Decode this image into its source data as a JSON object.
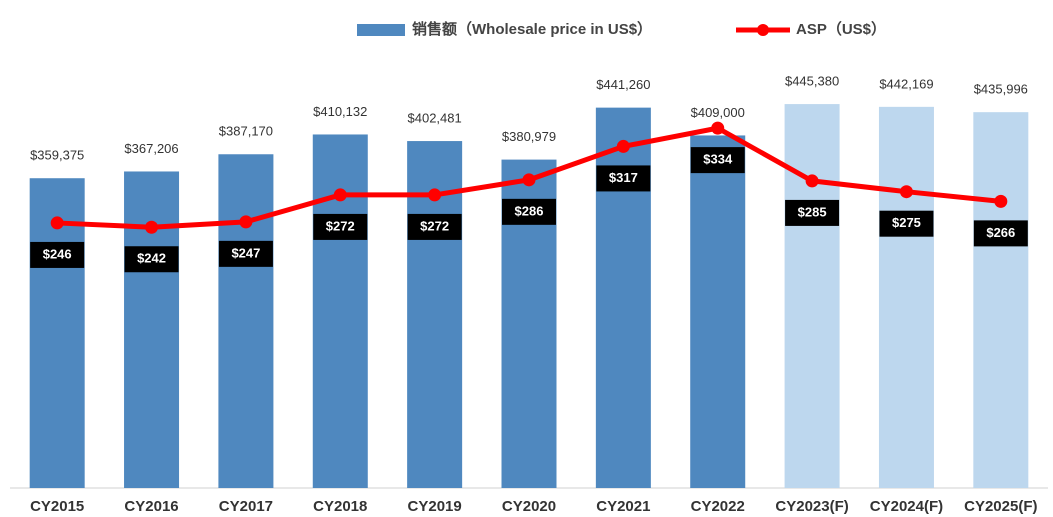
{
  "chart_data": {
    "type": "bar-line",
    "categories": [
      "CY2015",
      "CY2016",
      "CY2017",
      "CY2018",
      "CY2019",
      "CY2020",
      "CY2021",
      "CY2022",
      "CY2023(F)",
      "CY2024(F)",
      "CY2025(F)"
    ],
    "series": [
      {
        "name": "销售额（Wholesale price in US$）",
        "type": "bar",
        "color": "#4f88bf",
        "colors": [
          "#4f88bf",
          "#4f88bf",
          "#4f88bf",
          "#4f88bf",
          "#4f88bf",
          "#4f88bf",
          "#4f88bf",
          "#4f88bf",
          "#bdd7ee",
          "#bdd7ee",
          "#bdd7ee"
        ],
        "values": [
          359375,
          367206,
          387170,
          410132,
          402481,
          380979,
          441260,
          409000,
          445380,
          442169,
          435996
        ],
        "value_labels": [
          "$359,375",
          "$367,206",
          "$387,170",
          "$410,132",
          "$402,481",
          "$380,979",
          "$441,260",
          "$409,000",
          "$445,380",
          "$442,169",
          "$435,996"
        ]
      },
      {
        "name": "ASP（US$）",
        "type": "line",
        "color": "#ff0000",
        "axis": "y2",
        "values": [
          246,
          242,
          247,
          272,
          272,
          286,
          317,
          334,
          285,
          275,
          266
        ],
        "value_labels": [
          "$246",
          "$242",
          "$247",
          "$272",
          "$272",
          "$286",
          "$317",
          "$334",
          "$285",
          "$275",
          "$266"
        ]
      }
    ],
    "ylim": [
      0,
      500000
    ],
    "y2lim": [
      0,
      400
    ],
    "legend": "top"
  }
}
